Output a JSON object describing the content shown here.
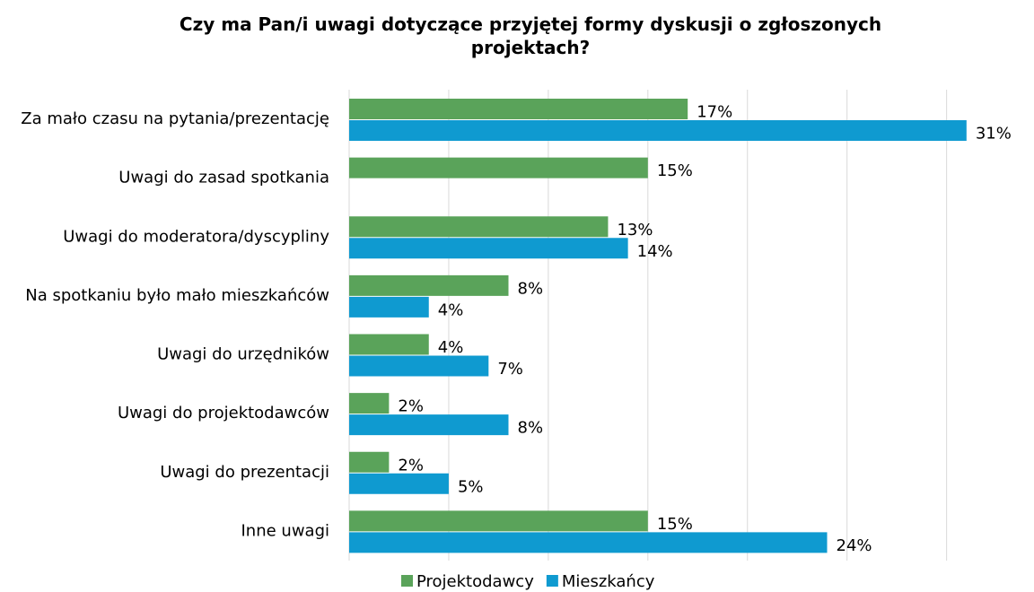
{
  "chart_data": {
    "type": "bar",
    "orientation": "horizontal",
    "title": "Czy ma Pan/i uwagi dotyczące przyjętej formy dyskusji o zgłoszonych projektach?",
    "categories": [
      "Za mało czasu na pytania/prezentację",
      "Uwagi do zasad spotkania",
      "Uwagi do moderatora/dyscypliny",
      "Na spotkaniu było mało mieszkańców",
      "Uwagi do urzędników",
      "Uwagi do projektodawców",
      "Uwagi do prezentacji",
      "Inne uwagi"
    ],
    "series": [
      {
        "name": "Projektodawcy",
        "color": "#5aa35a",
        "values": [
          17,
          15,
          13,
          8,
          4,
          2,
          2,
          15
        ],
        "value_labels": [
          "17%",
          "15%",
          "13%",
          "8%",
          "4%",
          "2%",
          "2%",
          "15%"
        ]
      },
      {
        "name": "Mieszkańcy",
        "color": "#0f9ad0",
        "values": [
          31,
          null,
          14,
          4,
          7,
          8,
          5,
          24
        ],
        "value_labels": [
          "31%",
          null,
          "14%",
          "4%",
          "7%",
          "8%",
          "5%",
          "24%"
        ]
      }
    ],
    "xlim": [
      0,
      32
    ],
    "xticks": [
      0,
      5,
      10,
      15,
      20,
      25,
      30
    ],
    "grid": true,
    "legend": "bottom"
  }
}
